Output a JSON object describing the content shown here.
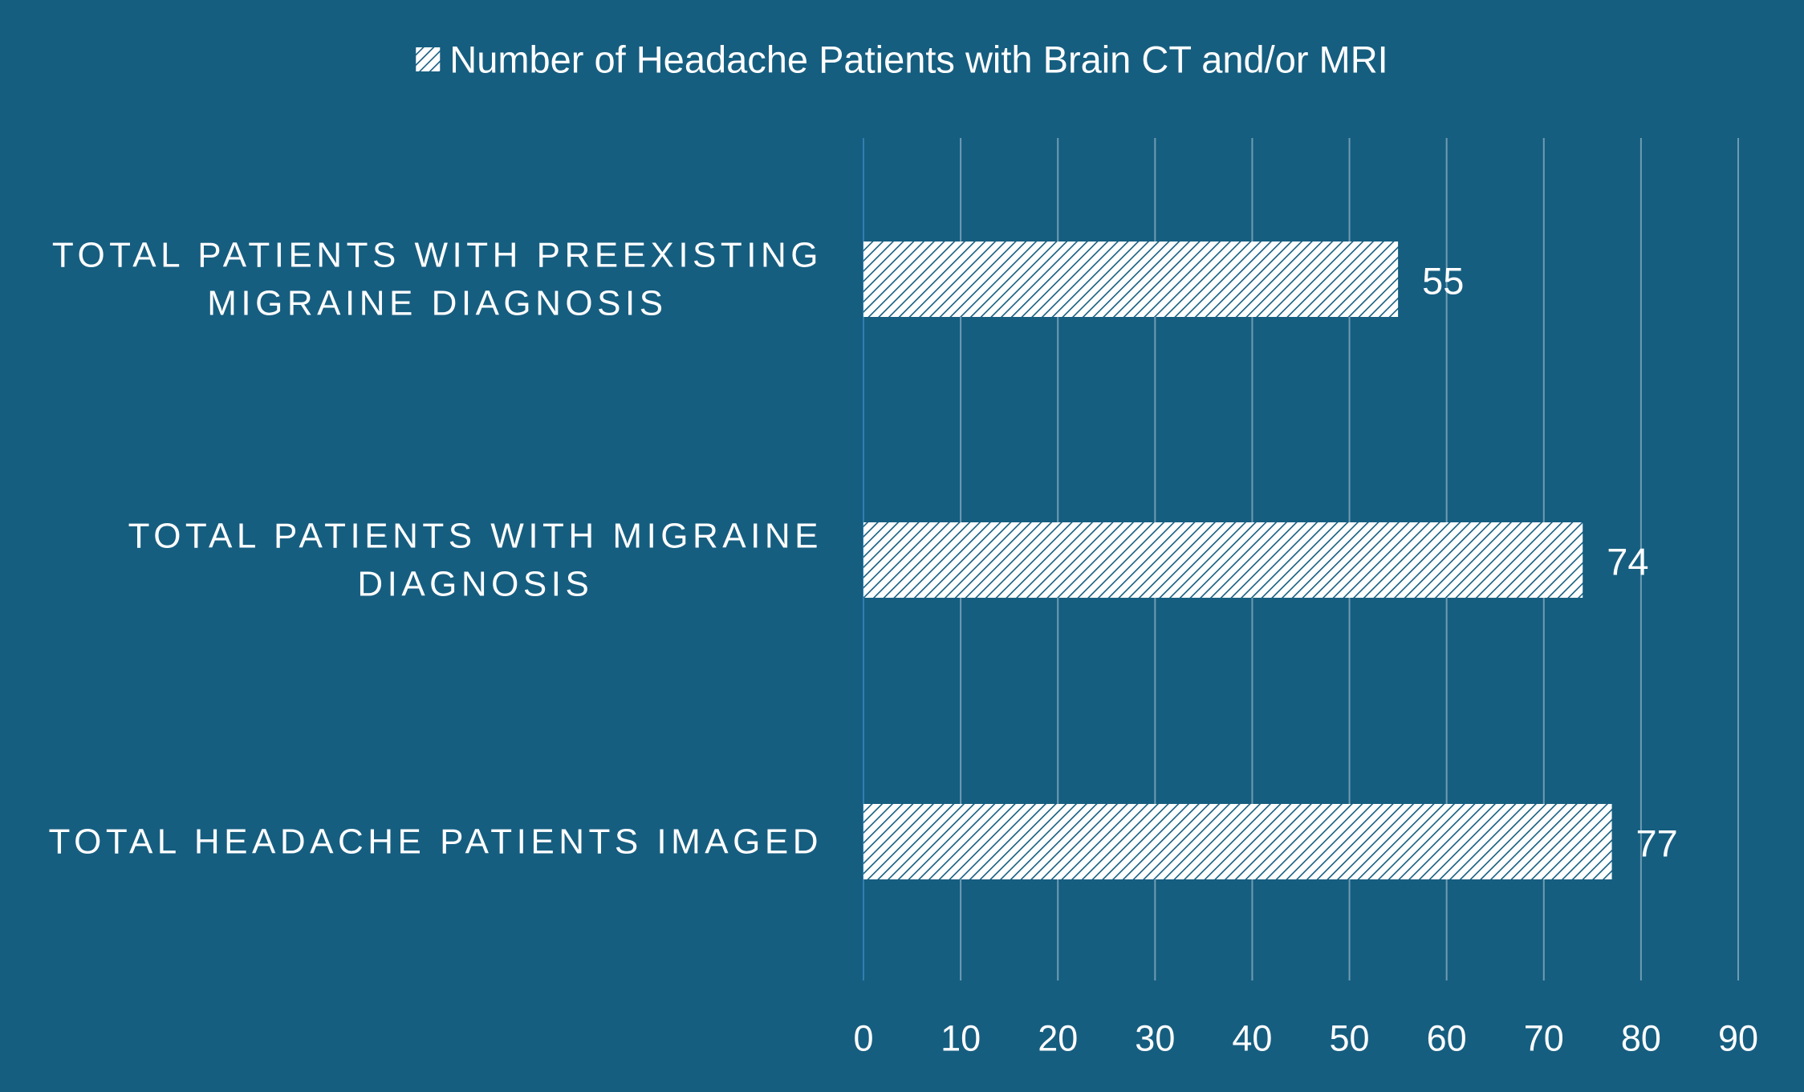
{
  "chart_data": {
    "type": "bar",
    "orientation": "horizontal",
    "categories": [
      [
        "TOTAL PATIENTS WITH PREEXISTING",
        "MIGRAINE DIAGNOSIS"
      ],
      [
        "TOTAL PATIENTS WITH MIGRAINE",
        "DIAGNOSIS"
      ],
      [
        "TOTAL HEADACHE PATIENTS IMAGED"
      ]
    ],
    "series": [
      {
        "name": "Number of Headache Patients with Brain CT and/or MRI",
        "values": [
          55,
          74,
          77
        ]
      }
    ],
    "data_labels": [
      "55",
      "74",
      "77"
    ],
    "xlim": [
      0,
      90
    ],
    "xticks": [
      0,
      10,
      20,
      30,
      40,
      50,
      60,
      70,
      80,
      90
    ],
    "grid": "vertical",
    "legend_position": "top",
    "bar_fill": "hatched",
    "colors": {
      "background": "#165e80",
      "bar": "#ffffff",
      "hatch": "#165e80",
      "gridline": "#6f9cb3",
      "text": "#ffffff"
    }
  }
}
